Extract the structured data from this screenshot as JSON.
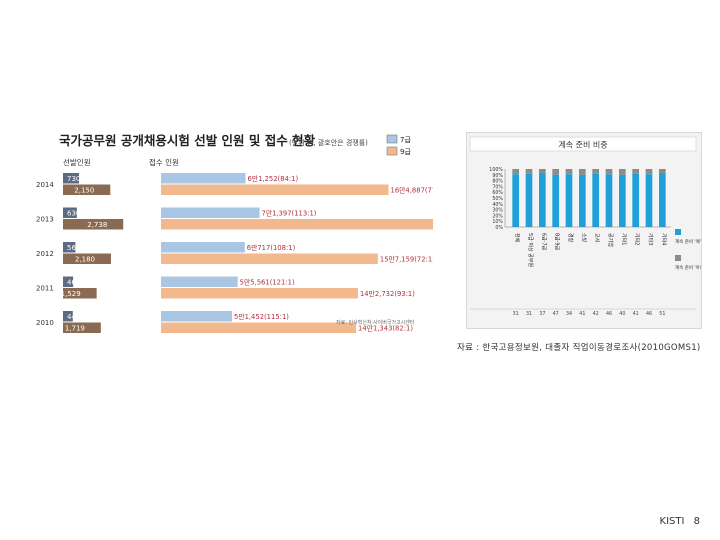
{
  "caption": "자료 : 한국고용정보원, 대졸자 직업이동경로조사(2010GOMS1)",
  "footer": {
    "org": "KISTI",
    "page": "8"
  },
  "chart_data": [
    {
      "type": "bar",
      "title": "국가공무원 공개채용시험 선발 인원 및 접수 현황",
      "subtitle": "(단위:명, 괄호안은 경쟁률)",
      "legend": [
        "7급",
        "9급"
      ],
      "legend_position": "top-right",
      "headers": {
        "left": "선발인원",
        "right": "접수 인원"
      },
      "source_note": "자료: 인사혁신처·사이버국가고시센터",
      "colors": {
        "grade7_selected": "#5c6b82",
        "grade9_selected": "#8a6a52",
        "grade7_applicants": "#a9c7e4",
        "grade9_applicants": "#f2b98e",
        "label_red": "#b0303c"
      },
      "categories": [
        "2014",
        "2013",
        "2012",
        "2011",
        "2010"
      ],
      "series": [
        {
          "name": "7급",
          "kind": "선발",
          "values": [
            730,
            630,
            561,
            461,
            446
          ],
          "labels": [
            "730",
            "630",
            "561",
            "461",
            "446"
          ]
        },
        {
          "name": "9급",
          "kind": "선발",
          "values": [
            2150,
            2738,
            2180,
            1529,
            1719
          ],
          "labels": [
            "2,150",
            "2,738",
            "2,180",
            "1,529",
            "1,719"
          ]
        },
        {
          "name": "7급",
          "kind": "접수",
          "values": [
            61252,
            71397,
            60717,
            55561,
            51452
          ],
          "labels": [
            "6만1,252(84:1)",
            "7만1,397(113:1)",
            "6만717(108:1)",
            "5만5,561(121:1)",
            "5만1,452(115:1)"
          ]
        },
        {
          "name": "9급",
          "kind": "접수",
          "values": [
            164887,
            204698,
            157159,
            142732,
            141343
          ],
          "labels": [
            "16만4,887(77:1)",
            "20만4,698(75:1)",
            "15만7,159(72:1)",
            "14만2,732(93:1)",
            "14만1,343(82:1)"
          ]
        }
      ]
    },
    {
      "type": "bar",
      "stacked": true,
      "title": "계속 준비 비중",
      "yticks": [
        "100%",
        "90%",
        "80%",
        "70%",
        "60%",
        "50%",
        "40%",
        "30%",
        "20%",
        "10%",
        "0%"
      ],
      "ylim": [
        0,
        100
      ],
      "categories": [
        "전체",
        "5급 이상 공무원",
        "6급·7급",
        "8급·9급",
        "경찰",
        "소방",
        "교사",
        "공기업",
        "기타1",
        "기타2",
        "기타3",
        "기타4"
      ],
      "series": [
        {
          "name": "계속 준비 '예'",
          "color": "#1fa0d8",
          "values": [
            91,
            92,
            93,
            90,
            91,
            90,
            92,
            91,
            90,
            92,
            91,
            93
          ]
        },
        {
          "name": "계속 준비 '아니오'",
          "color": "#8c8c8c",
          "values": [
            9,
            8,
            7,
            10,
            9,
            10,
            8,
            9,
            10,
            8,
            9,
            7
          ]
        }
      ],
      "counts": [
        "31",
        "31",
        "37",
        "47",
        "34",
        "41",
        "42",
        "46",
        "40",
        "41",
        "46",
        "51"
      ],
      "legend": [
        "계속 준비 '예'",
        "계속 준비 '아니오'"
      ],
      "legend_position": "right"
    }
  ]
}
